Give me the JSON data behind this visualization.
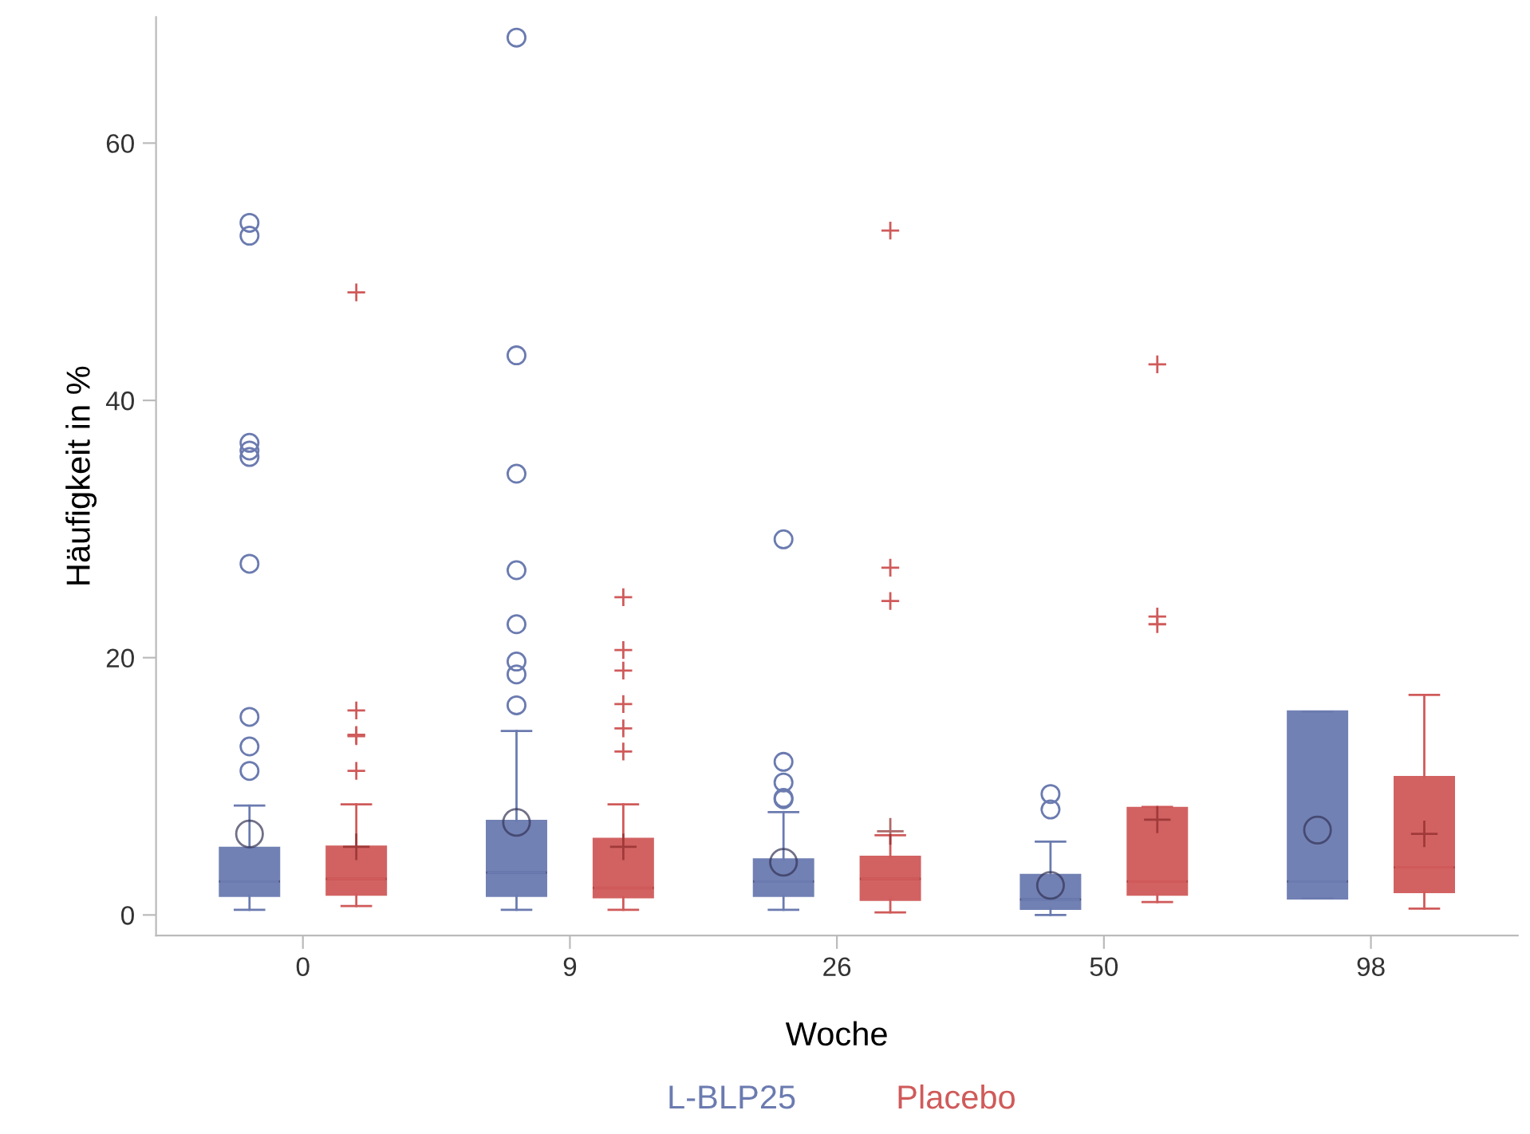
{
  "chart_data": {
    "type": "box",
    "xlabel": "Woche",
    "ylabel": "Häufigkeit in %",
    "categories": [
      "0",
      "9",
      "26",
      "50",
      "98"
    ],
    "ylim": [
      -1.6,
      69.8
    ],
    "yticks": [
      0,
      20,
      40,
      60
    ],
    "grid": false,
    "legend": "bottom",
    "series": [
      {
        "name": "L-BLP25",
        "color": "#6b7bb0",
        "marker": "circle",
        "boxes": [
          {
            "low": 0.4,
            "q1": 1.5,
            "median": 2.6,
            "q3": 5.2,
            "high": 8.5,
            "mean": 6.3,
            "outliers": [
              11.2,
              13.1,
              15.4,
              27.3,
              35.6,
              36.1,
              36.7,
              52.8,
              53.8
            ]
          },
          {
            "low": 0.4,
            "q1": 1.5,
            "median": 3.3,
            "q3": 7.3,
            "high": 14.3,
            "mean": 7.2,
            "outliers": [
              16.3,
              18.7,
              19.7,
              22.6,
              26.8,
              34.3,
              43.5,
              68.2
            ]
          },
          {
            "low": 0.4,
            "q1": 1.5,
            "median": 2.6,
            "q3": 4.3,
            "high": 8.0,
            "mean": 4.1,
            "outliers": [
              9.0,
              9.1,
              10.3,
              11.9,
              29.2
            ]
          },
          {
            "low": 0.0,
            "q1": 0.5,
            "median": 1.2,
            "q3": 3.1,
            "high": 5.7,
            "mean": 2.3,
            "outliers": [
              8.2,
              9.4
            ]
          },
          {
            "low": 1.3,
            "q1": 1.3,
            "median": 2.6,
            "q3": 15.8,
            "high": 15.8,
            "mean": 6.6
          }
        ]
      },
      {
        "name": "Placebo",
        "color": "#d05a5a",
        "marker": "cross",
        "boxes": [
          {
            "low": 0.7,
            "q1": 1.6,
            "median": 2.8,
            "q3": 5.3,
            "high": 8.6,
            "mean": 5.3,
            "outliers": [
              11.2,
              13.9,
              14.0,
              15.9,
              48.4
            ]
          },
          {
            "low": 0.4,
            "q1": 1.4,
            "median": 2.1,
            "q3": 5.9,
            "high": 8.6,
            "mean": 5.3,
            "outliers": [
              12.7,
              14.5,
              16.4,
              19.0,
              20.6,
              24.7
            ]
          },
          {
            "low": 0.2,
            "q1": 1.2,
            "median": 2.8,
            "q3": 4.5,
            "high": 6.2,
            "mean": 6.5,
            "outliers": [
              24.4,
              27.0,
              53.2
            ]
          },
          {
            "low": 1.0,
            "q1": 1.6,
            "median": 2.6,
            "q3": 8.3,
            "high": 8.4,
            "mean": 7.4,
            "outliers": [
              22.6,
              23.2,
              42.8
            ]
          },
          {
            "low": 0.5,
            "q1": 1.8,
            "median": 3.7,
            "q3": 10.7,
            "high": 17.1,
            "mean": 6.3
          }
        ]
      }
    ]
  }
}
